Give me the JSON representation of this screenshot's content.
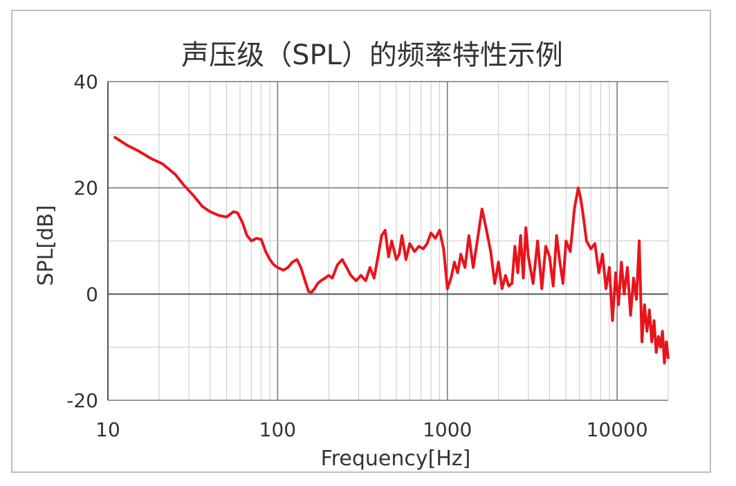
{
  "chart_data": {
    "type": "line",
    "title": "声压级（SPL）的频率特性示例",
    "xlabel": "Frequency[Hz]",
    "ylabel": "SPL[dB]",
    "x_scale": "log",
    "xlim": [
      10,
      20000
    ],
    "ylim": [
      -20,
      40
    ],
    "x_ticks": [
      10,
      100,
      1000,
      10000
    ],
    "x_tick_labels": [
      "10",
      "100",
      "1000",
      "10000"
    ],
    "y_ticks": [
      -20,
      0,
      20,
      40
    ],
    "y_tick_labels": [
      "-20",
      "0",
      "20",
      "40"
    ],
    "grid": true,
    "legend": "none",
    "series": [
      {
        "color": "#e8141c",
        "x": [
          11,
          13,
          15,
          18,
          21,
          25,
          28,
          32,
          36,
          40,
          45,
          50,
          55,
          58,
          62,
          66,
          70,
          75,
          80,
          85,
          90,
          95,
          100,
          108,
          115,
          122,
          130,
          137,
          145,
          152,
          158,
          165,
          172,
          180,
          190,
          200,
          210,
          225,
          240,
          255,
          270,
          290,
          310,
          330,
          350,
          370,
          390,
          410,
          430,
          450,
          470,
          500,
          520,
          540,
          570,
          600,
          640,
          680,
          720,
          760,
          800,
          850,
          900,
          950,
          1000,
          1050,
          1100,
          1150,
          1200,
          1270,
          1340,
          1420,
          1500,
          1600,
          1650,
          1700,
          1800,
          1900,
          2000,
          2100,
          2200,
          2300,
          2400,
          2500,
          2600,
          2700,
          2800,
          2900,
          3000,
          3200,
          3400,
          3600,
          3800,
          4000,
          4200,
          4400,
          4600,
          4800,
          5000,
          5300,
          5600,
          5900,
          6100,
          6300,
          6600,
          7000,
          7400,
          7800,
          8200,
          8600,
          9000,
          9400,
          9800,
          10200,
          10600,
          11000,
          11500,
          12000,
          12500,
          13000,
          13500,
          14000,
          14500,
          15000,
          15500,
          16000,
          16500,
          17000,
          17500,
          18000,
          18500,
          19000,
          19500,
          20000
        ],
        "values": [
          29.5,
          28.0,
          27.0,
          25.5,
          24.5,
          22.5,
          20.5,
          18.5,
          16.5,
          15.5,
          14.8,
          14.5,
          15.5,
          15.3,
          13.5,
          11.0,
          10.0,
          10.5,
          10.3,
          8.0,
          6.5,
          5.5,
          5.0,
          4.5,
          5.0,
          6.0,
          6.5,
          5.0,
          2.5,
          0.5,
          0.3,
          1.0,
          2.0,
          2.5,
          3.0,
          3.5,
          3.0,
          5.5,
          6.5,
          5.0,
          3.5,
          2.5,
          3.5,
          2.5,
          5.0,
          3.0,
          7.0,
          11.0,
          12.0,
          7.0,
          10.0,
          6.5,
          7.5,
          11.0,
          6.5,
          9.5,
          8.0,
          9.0,
          8.5,
          9.5,
          11.5,
          10.5,
          12.0,
          8.5,
          1.0,
          3.0,
          6.0,
          4.0,
          7.5,
          5.0,
          11.0,
          5.0,
          10.0,
          16.0,
          14.0,
          12.0,
          8.0,
          2.0,
          6.0,
          1.0,
          3.5,
          1.5,
          2.0,
          9.0,
          4.0,
          11.0,
          3.0,
          12.5,
          7.0,
          2.0,
          10.0,
          1.0,
          9.0,
          7.0,
          1.5,
          11.0,
          6.0,
          2.0,
          10.0,
          8.0,
          16.0,
          20.0,
          18.0,
          15.0,
          10.0,
          8.5,
          9.5,
          4.0,
          7.5,
          1.0,
          5.0,
          -5.0,
          4.0,
          -2.0,
          6.0,
          0.0,
          5.0,
          -4.0,
          3.0,
          -1.0,
          10.0,
          -9.0,
          -2.0,
          -7.0,
          -3.0,
          -9.0,
          -5.0,
          -11.0,
          -8.0,
          -10.0,
          -7.0,
          -13.0,
          -9.0,
          -12.0
        ]
      }
    ]
  }
}
